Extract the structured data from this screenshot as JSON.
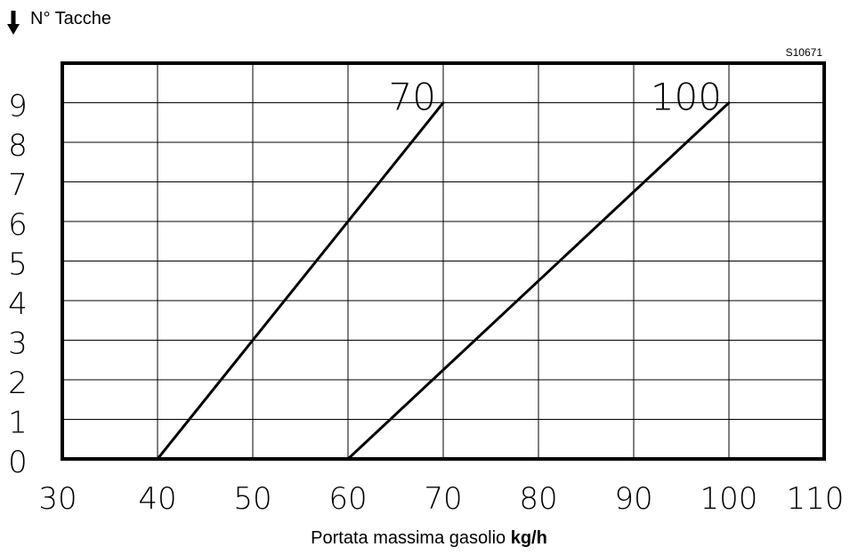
{
  "chart_data": {
    "type": "line",
    "ylabel": "N° Tacche",
    "xlabel": "Portata massima gasolio",
    "xlabel_unit": "kg/h",
    "code": "S10671",
    "xlim": [
      30,
      110
    ],
    "ylim": [
      0,
      9
    ],
    "x_ticks": [
      "30",
      "40",
      "50",
      "60",
      "70",
      "80",
      "90",
      "100",
      "110"
    ],
    "y_ticks": [
      "0",
      "1",
      "2",
      "3",
      "4",
      "5",
      "6",
      "7",
      "8",
      "9"
    ],
    "grid": true,
    "series": [
      {
        "name": "70",
        "x": [
          40,
          70
        ],
        "y": [
          0,
          9
        ]
      },
      {
        "name": "100",
        "x": [
          60,
          100
        ],
        "y": [
          0,
          9
        ]
      }
    ]
  }
}
